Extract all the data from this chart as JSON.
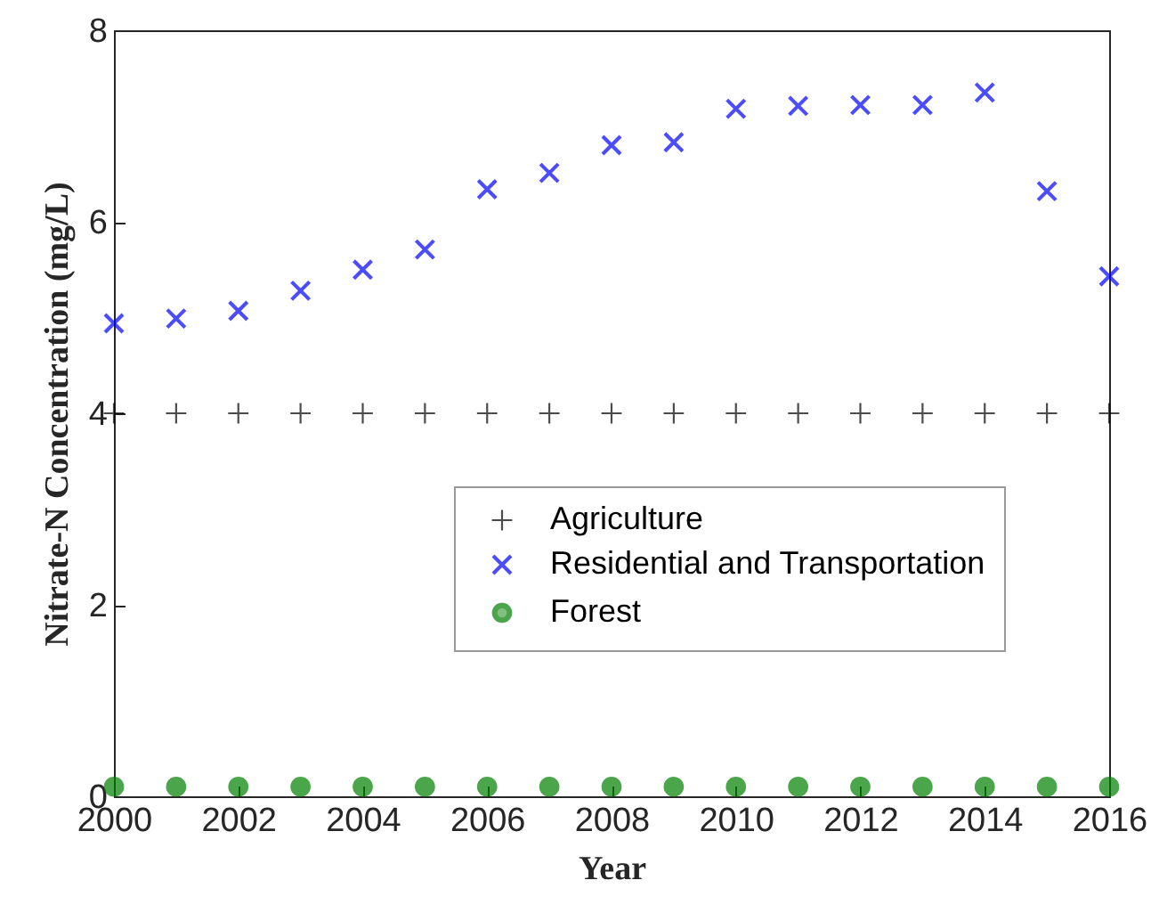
{
  "chart_data": {
    "type": "scatter",
    "xlabel": "Year",
    "ylabel": "Nitrate-N Concentration (mg/L)",
    "x": [
      2000,
      2001,
      2002,
      2003,
      2004,
      2005,
      2006,
      2007,
      2008,
      2009,
      2010,
      2011,
      2012,
      2013,
      2014,
      2015,
      2016
    ],
    "xlim": [
      2000,
      2016
    ],
    "xticks": [
      2000,
      2002,
      2004,
      2006,
      2008,
      2010,
      2012,
      2014,
      2016
    ],
    "ylim": [
      0,
      8
    ],
    "yticks": [
      0,
      2,
      4,
      6,
      8
    ],
    "grid": false,
    "legend": "right",
    "series": [
      {
        "name": "Agriculture",
        "color": "#000000",
        "marker": "cross",
        "values": [
          4,
          4,
          4,
          4,
          4,
          4,
          4,
          4,
          4,
          4,
          4,
          4,
          4,
          4,
          4,
          4,
          4
        ]
      },
      {
        "name": "Residential and Transportation",
        "color": "#0000ff",
        "marker": "x",
        "values": [
          4.94,
          4.99,
          5.07,
          5.28,
          5.5,
          5.71,
          6.34,
          6.51,
          6.8,
          6.83,
          7.18,
          7.21,
          7.22,
          7.22,
          7.35,
          6.32,
          5.43
        ]
      },
      {
        "name": "Forest",
        "color": "#008000",
        "marker": "circle",
        "values": [
          0.1,
          0.1,
          0.1,
          0.1,
          0.1,
          0.1,
          0.1,
          0.1,
          0.1,
          0.1,
          0.1,
          0.1,
          0.1,
          0.1,
          0.1,
          0.1,
          0.1
        ]
      }
    ]
  }
}
